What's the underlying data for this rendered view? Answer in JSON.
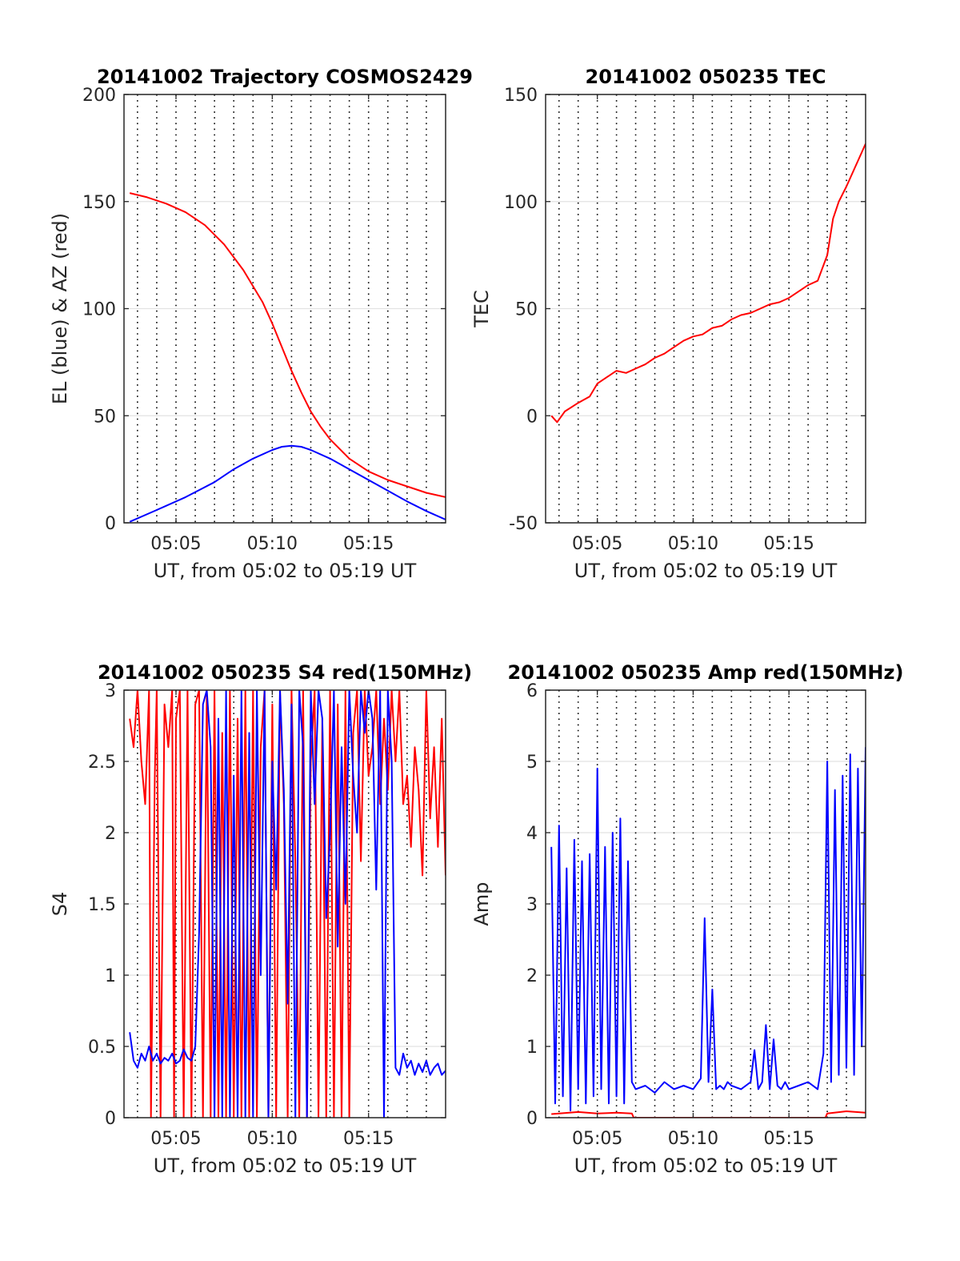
{
  "charts": [
    {
      "title": "20141002 Trajectory COSMOS2429",
      "xlabel": "UT, from 05:02 to 05:19 UT",
      "ylabel": "EL (blue) & AZ (red)",
      "ylim": [
        0,
        200
      ],
      "yticks": [
        0,
        50,
        100,
        150,
        200
      ]
    },
    {
      "title": "20141002 050235 TEC",
      "xlabel": "UT, from 05:02 to 05:19 UT",
      "ylabel": "TEC",
      "ylim": [
        -50,
        150
      ],
      "yticks": [
        -50,
        0,
        50,
        100,
        150
      ]
    },
    {
      "title": "20141002 050235 S4 red(150MHz)",
      "xlabel": "UT, from 05:02 to 05:19 UT",
      "ylabel": "S4",
      "ylim": [
        0,
        3
      ],
      "yticks": [
        0,
        0.5,
        1,
        1.5,
        2,
        2.5,
        3
      ]
    },
    {
      "title": "20141002 050235 Amp red(150MHz)",
      "xlabel": "UT, from 05:02 to 05:19 UT",
      "ylabel": "Amp",
      "ylim": [
        0,
        6
      ],
      "yticks": [
        0,
        1,
        2,
        3,
        4,
        5,
        6
      ]
    }
  ],
  "chart_data": [
    {
      "type": "line",
      "title": "20141002 Trajectory COSMOS2429",
      "xlabel": "UT, from 05:02 to 05:19 UT",
      "ylabel": "EL (blue) & AZ (red)",
      "x_unit": "minutes past 05:00 UT",
      "xlim": [
        2.3,
        19.0
      ],
      "ylim": [
        0,
        200
      ],
      "xtick_labels": [
        "05:05",
        "05:10",
        "05:15"
      ],
      "xticks": [
        5,
        10,
        15
      ],
      "grid": true,
      "series": [
        {
          "color": "#ff0000",
          "x": [
            2.6,
            3.5,
            4.5,
            5.5,
            6.5,
            7.5,
            8.5,
            9.5,
            10.0,
            10.5,
            11.0,
            11.5,
            12.0,
            12.5,
            13.0,
            14.0,
            15.0,
            16.0,
            17.0,
            18.0,
            19.0
          ],
          "y": [
            154,
            152,
            149,
            145,
            139,
            130,
            118,
            103,
            93,
            82,
            71,
            61,
            52,
            45,
            39,
            30,
            24,
            20,
            17,
            14,
            12
          ]
        },
        {
          "color": "#0000ff",
          "x": [
            2.6,
            4.0,
            5.5,
            7.0,
            8.0,
            9.0,
            10.0,
            10.5,
            11.0,
            11.5,
            12.0,
            13.0,
            14.0,
            15.0,
            16.0,
            17.0,
            18.0,
            19.0
          ],
          "y": [
            0.5,
            6,
            12,
            19,
            25,
            30,
            34,
            35.5,
            36,
            35.5,
            34,
            30,
            25,
            20,
            15,
            10,
            5.5,
            1.5
          ]
        }
      ]
    },
    {
      "type": "line",
      "title": "20141002 050235 TEC",
      "xlabel": "UT, from 05:02 to 05:19 UT",
      "ylabel": "TEC",
      "x_unit": "minutes past 05:00 UT",
      "xlim": [
        2.3,
        19.0
      ],
      "ylim": [
        -50,
        150
      ],
      "xtick_labels": [
        "05:05",
        "05:10",
        "05:15"
      ],
      "xticks": [
        5,
        10,
        15
      ],
      "grid": true,
      "series": [
        {
          "color": "#ff0000",
          "x": [
            2.6,
            2.9,
            3.3,
            4.0,
            4.6,
            5.0,
            5.5,
            6.0,
            6.5,
            7.0,
            7.5,
            8.0,
            8.5,
            9.0,
            9.5,
            10.0,
            10.5,
            11.0,
            11.5,
            12.0,
            12.5,
            13.0,
            13.5,
            14.0,
            14.5,
            15.0,
            15.5,
            16.0,
            16.5,
            17.0,
            17.3,
            17.6,
            18.0,
            18.4,
            18.7,
            19.0
          ],
          "y": [
            0,
            -3,
            2,
            6,
            9,
            15,
            18,
            21,
            20,
            22,
            24,
            27,
            29,
            32,
            35,
            37,
            38,
            41,
            42,
            45,
            47,
            48,
            50,
            52,
            53,
            55,
            58,
            61,
            63,
            75,
            92,
            100,
            107,
            115,
            121,
            127
          ]
        }
      ]
    },
    {
      "type": "line",
      "title": "20141002 050235 S4 red(150MHz)",
      "xlabel": "UT, from 05:02 to 05:19 UT",
      "ylabel": "S4",
      "x_unit": "minutes past 05:00 UT",
      "xlim": [
        2.3,
        19.0
      ],
      "ylim": [
        0,
        3
      ],
      "xtick_labels": [
        "05:05",
        "05:10",
        "05:15"
      ],
      "xticks": [
        5,
        10,
        15
      ],
      "grid": true,
      "series": [
        {
          "color": "#ff0000",
          "x": [
            2.6,
            2.8,
            3.0,
            3.2,
            3.4,
            3.6,
            3.7,
            3.9,
            4.0,
            4.2,
            4.4,
            4.6,
            4.8,
            4.9,
            5.0,
            5.2,
            5.4,
            5.6,
            5.8,
            6.0,
            6.2,
            6.4,
            6.6,
            6.8,
            7.0,
            7.2,
            7.4,
            7.6,
            7.8,
            8.0,
            8.2,
            8.4,
            8.6,
            8.8,
            9.0,
            9.2,
            9.4,
            9.6,
            9.8,
            10.0,
            10.2,
            10.4,
            10.6,
            10.8,
            11.0,
            11.2,
            11.4,
            11.6,
            11.8,
            12.0,
            12.2,
            12.4,
            12.6,
            12.8,
            13.0,
            13.2,
            13.4,
            13.6,
            13.8,
            14.0,
            14.2,
            14.4,
            14.6,
            14.8,
            15.0,
            15.2,
            15.4,
            15.6,
            15.8,
            16.0,
            16.2,
            16.4,
            16.6,
            16.8,
            17.0,
            17.2,
            17.4,
            17.6,
            17.8,
            18.0,
            18.2,
            18.4,
            18.6,
            18.8,
            19.0
          ],
          "y": [
            2.8,
            2.6,
            3.0,
            2.5,
            2.2,
            3.0,
            0.0,
            2.4,
            3.0,
            0.0,
            2.9,
            2.6,
            3.0,
            0.0,
            2.8,
            3.0,
            0.0,
            3.0,
            0.0,
            2.9,
            3.0,
            0.0,
            3.0,
            0.0,
            3.0,
            0.0,
            2.7,
            0.0,
            3.0,
            0.0,
            2.8,
            0.0,
            3.0,
            0.0,
            3.0,
            0.0,
            2.6,
            3.0,
            0.0,
            2.9,
            0.0,
            3.0,
            2.2,
            0.0,
            3.0,
            1.8,
            0.0,
            3.0,
            0.0,
            2.5,
            3.0,
            0.0,
            2.8,
            0.0,
            3.0,
            0.0,
            2.9,
            0.0,
            3.0,
            0.0,
            2.7,
            3.0,
            1.8,
            3.0,
            2.4,
            2.6,
            3.0,
            2.2,
            2.8,
            2.3,
            3.0,
            2.5,
            3.0,
            2.2,
            2.4,
            1.9,
            2.6,
            2.3,
            1.7,
            3.0,
            2.1,
            2.6,
            1.9,
            2.8,
            1.7
          ]
        },
        {
          "color": "#0000ff",
          "x": [
            2.6,
            2.8,
            3.0,
            3.2,
            3.4,
            3.6,
            3.8,
            4.0,
            4.2,
            4.4,
            4.6,
            4.8,
            5.0,
            5.2,
            5.4,
            5.6,
            5.8,
            6.0,
            6.2,
            6.4,
            6.6,
            6.8,
            7.0,
            7.2,
            7.4,
            7.6,
            7.8,
            8.0,
            8.2,
            8.4,
            8.6,
            8.8,
            9.0,
            9.2,
            9.4,
            9.6,
            9.8,
            10.0,
            10.2,
            10.4,
            10.6,
            10.8,
            11.0,
            11.2,
            11.4,
            11.6,
            11.8,
            12.0,
            12.2,
            12.4,
            12.6,
            12.8,
            13.0,
            13.2,
            13.4,
            13.6,
            13.8,
            14.0,
            14.2,
            14.4,
            14.6,
            14.8,
            15.0,
            15.2,
            15.4,
            15.6,
            15.8,
            16.0,
            16.2,
            16.4,
            16.6,
            16.8,
            17.0,
            17.2,
            17.4,
            17.6,
            17.8,
            18.0,
            18.2,
            18.4,
            18.6,
            18.8,
            19.0
          ],
          "y": [
            0.6,
            0.4,
            0.35,
            0.45,
            0.4,
            0.5,
            0.4,
            0.45,
            0.38,
            0.42,
            0.4,
            0.45,
            0.38,
            0.4,
            0.48,
            0.42,
            0.4,
            0.5,
            1.3,
            2.9,
            3.0,
            2.6,
            0.0,
            2.8,
            0.0,
            3.0,
            0.0,
            2.4,
            0.0,
            3.0,
            0.0,
            2.7,
            0.0,
            3.0,
            1.0,
            3.0,
            0.0,
            2.5,
            1.6,
            3.0,
            2.3,
            0.8,
            2.9,
            0.0,
            3.0,
            2.6,
            0.0,
            3.0,
            2.2,
            3.0,
            2.8,
            1.4,
            2.0,
            3.0,
            1.2,
            2.6,
            1.5,
            3.0,
            2.4,
            2.0,
            3.0,
            2.7,
            3.0,
            2.8,
            1.6,
            3.0,
            0.0,
            3.0,
            2.5,
            0.35,
            0.3,
            0.45,
            0.35,
            0.4,
            0.3,
            0.38,
            0.32,
            0.4,
            0.3,
            0.35,
            0.38,
            0.3,
            0.33
          ]
        }
      ]
    },
    {
      "type": "line",
      "title": "20141002 050235 Amp red(150MHz)",
      "xlabel": "UT, from 05:02 to 05:19 UT",
      "ylabel": "Amp",
      "x_unit": "minutes past 05:00 UT",
      "xlim": [
        2.3,
        19.0
      ],
      "ylim": [
        0,
        6
      ],
      "xtick_labels": [
        "05:05",
        "05:10",
        "05:15"
      ],
      "xticks": [
        5,
        10,
        15
      ],
      "grid": true,
      "series": [
        {
          "color": "#ff0000",
          "x": [
            2.6,
            4.0,
            5.0,
            6.0,
            6.8,
            6.9,
            16.9,
            17.0,
            18.0,
            19.0
          ],
          "y": [
            0.05,
            0.08,
            0.06,
            0.07,
            0.06,
            0.0,
            0.0,
            0.06,
            0.09,
            0.07
          ]
        },
        {
          "color": "#0000ff",
          "x": [
            2.6,
            2.8,
            3.0,
            3.2,
            3.4,
            3.6,
            3.8,
            4.0,
            4.2,
            4.4,
            4.6,
            4.8,
            5.0,
            5.2,
            5.4,
            5.6,
            5.8,
            6.0,
            6.2,
            6.4,
            6.6,
            6.8,
            7.0,
            7.5,
            8.0,
            8.5,
            9.0,
            9.5,
            10.0,
            10.4,
            10.6,
            10.8,
            11.0,
            11.2,
            11.4,
            11.6,
            11.8,
            12.0,
            12.5,
            13.0,
            13.2,
            13.4,
            13.6,
            13.8,
            14.0,
            14.2,
            14.4,
            14.6,
            14.8,
            15.0,
            15.5,
            16.0,
            16.5,
            16.8,
            17.0,
            17.2,
            17.4,
            17.6,
            17.8,
            18.0,
            18.2,
            18.4,
            18.6,
            18.8,
            19.0
          ],
          "y": [
            3.8,
            0.2,
            4.1,
            0.3,
            3.5,
            0.1,
            3.9,
            0.4,
            3.6,
            0.2,
            3.7,
            0.3,
            4.9,
            0.4,
            3.8,
            0.2,
            4.0,
            0.3,
            4.2,
            0.2,
            3.6,
            0.5,
            0.4,
            0.45,
            0.35,
            0.5,
            0.4,
            0.45,
            0.4,
            0.55,
            2.8,
            0.5,
            1.8,
            0.4,
            0.45,
            0.4,
            0.5,
            0.45,
            0.4,
            0.5,
            0.95,
            0.4,
            0.5,
            1.3,
            0.4,
            1.1,
            0.45,
            0.4,
            0.5,
            0.4,
            0.45,
            0.5,
            0.4,
            0.9,
            5.0,
            0.5,
            4.6,
            0.6,
            4.8,
            0.7,
            5.1,
            0.6,
            4.9,
            1.0,
            5.2
          ]
        }
      ]
    }
  ]
}
